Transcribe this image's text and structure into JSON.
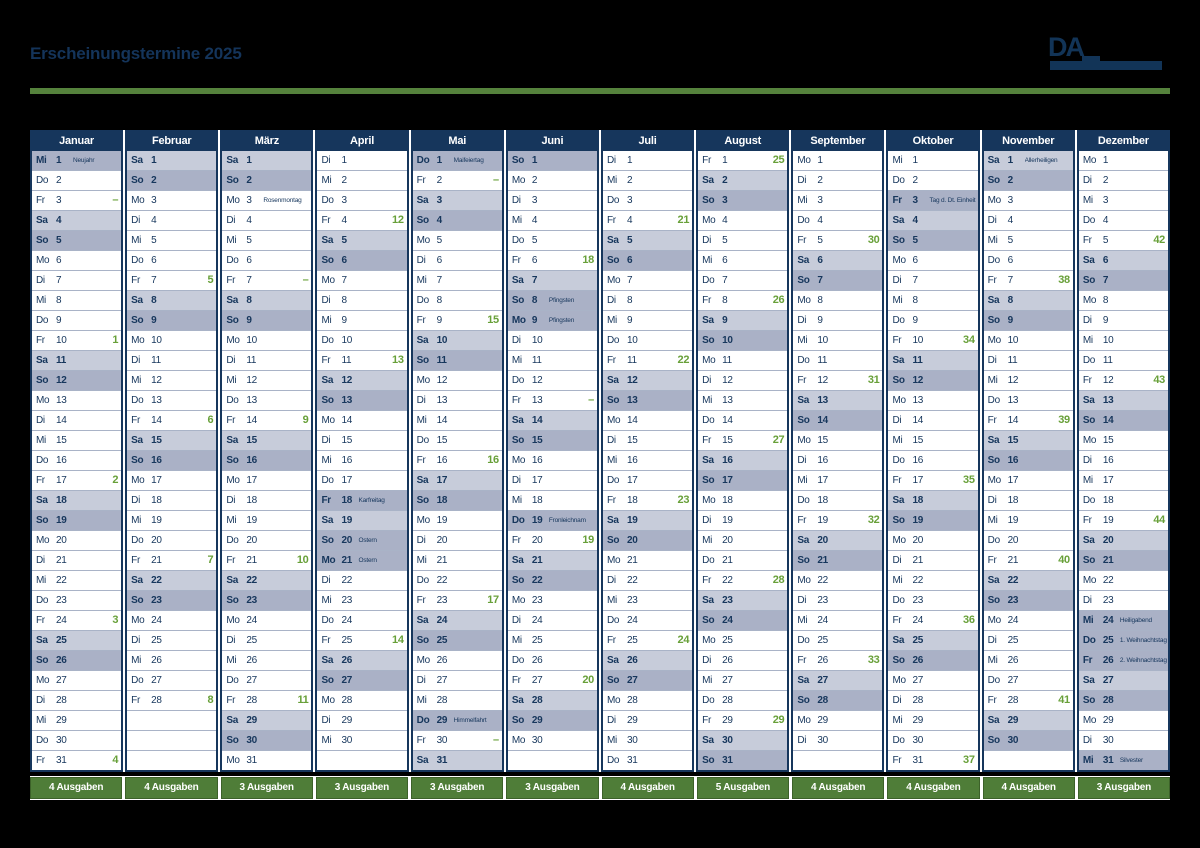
{
  "title": "Erscheinungstermine 2025",
  "logo": {
    "text": "DA"
  },
  "weekdays": [
    "Mo",
    "Di",
    "Mi",
    "Do",
    "Fr",
    "Sa",
    "So"
  ],
  "dash_symbol": "–",
  "colors": {
    "navy": "#16365c",
    "issue_green": "#68a039",
    "bar_green": "#55823c",
    "footer_green": "#4f7d38",
    "saturday_bg": "#c7ccda",
    "sunday_holiday_bg": "#aab1c6"
  },
  "months": [
    {
      "name": "Januar",
      "start": 2,
      "days": 31,
      "holidays": {
        "1": "Neujahr"
      },
      "notes": {},
      "issues": {
        "10": "1",
        "17": "2",
        "24": "3",
        "31": "4"
      },
      "dashes": [
        3
      ],
      "footer": "4 Ausgaben"
    },
    {
      "name": "Februar",
      "start": 5,
      "days": 28,
      "holidays": {},
      "notes": {},
      "issues": {
        "7": "5",
        "14": "6",
        "21": "7",
        "28": "8"
      },
      "dashes": [],
      "footer": "4 Ausgaben"
    },
    {
      "name": "März",
      "start": 5,
      "days": 31,
      "holidays": {},
      "notes": {
        "3": "Rosenmontag"
      },
      "issues": {
        "14": "9",
        "21": "10",
        "28": "11"
      },
      "dashes": [
        7
      ],
      "footer": "3 Ausgaben"
    },
    {
      "name": "April",
      "start": 1,
      "days": 30,
      "holidays": {
        "18": "Karfreitag",
        "21": "Ostern"
      },
      "notes": {
        "20": "Ostern"
      },
      "issues": {
        "4": "12",
        "11": "13",
        "25": "14"
      },
      "dashes": [],
      "footer": "3 Ausgaben"
    },
    {
      "name": "Mai",
      "start": 3,
      "days": 31,
      "holidays": {
        "1": "Maifeiertag",
        "29": "Himmelfahrt"
      },
      "notes": {},
      "issues": {
        "9": "15",
        "16": "16",
        "23": "17"
      },
      "dashes": [
        2,
        30
      ],
      "footer": "3 Ausgaben"
    },
    {
      "name": "Juni",
      "start": 6,
      "days": 30,
      "holidays": {
        "9": "Pfingsten",
        "19": "Fronleichnam"
      },
      "notes": {
        "8": "Pfingsten"
      },
      "issues": {
        "6": "18",
        "20": "19",
        "27": "20"
      },
      "dashes": [
        13
      ],
      "footer": "3 Ausgaben"
    },
    {
      "name": "Juli",
      "start": 1,
      "days": 31,
      "holidays": {},
      "notes": {},
      "issues": {
        "4": "21",
        "11": "22",
        "18": "23",
        "25": "24"
      },
      "dashes": [],
      "footer": "4 Ausgaben"
    },
    {
      "name": "August",
      "start": 4,
      "days": 31,
      "holidays": {},
      "notes": {},
      "issues": {
        "1": "25",
        "8": "26",
        "15": "27",
        "22": "28",
        "29": "29"
      },
      "dashes": [],
      "footer": "5 Ausgaben"
    },
    {
      "name": "September",
      "start": 0,
      "days": 30,
      "holidays": {},
      "notes": {},
      "issues": {
        "5": "30",
        "12": "31",
        "19": "32",
        "26": "33"
      },
      "dashes": [],
      "footer": "4 Ausgaben"
    },
    {
      "name": "Oktober",
      "start": 2,
      "days": 31,
      "holidays": {
        "3": "Tag d. Dt. Einheit"
      },
      "notes": {},
      "issues": {
        "10": "34",
        "17": "35",
        "24": "36",
        "31": "37"
      },
      "dashes": [],
      "footer": "4 Ausgaben"
    },
    {
      "name": "November",
      "start": 5,
      "days": 30,
      "holidays": {},
      "notes": {
        "1": "Allerheiligen"
      },
      "issues": {
        "7": "38",
        "14": "39",
        "21": "40",
        "28": "41"
      },
      "dashes": [],
      "footer": "4 Ausgaben"
    },
    {
      "name": "Dezember",
      "start": 0,
      "days": 31,
      "holidays": {
        "24": "Heiligabend",
        "25": "1. Weihnachtstag",
        "26": "2. Weihnachtstag",
        "31": "Silvester"
      },
      "notes": {},
      "issues": {
        "5": "42",
        "12": "43",
        "19": "44"
      },
      "dashes": [],
      "footer": "3 Ausgaben"
    }
  ]
}
